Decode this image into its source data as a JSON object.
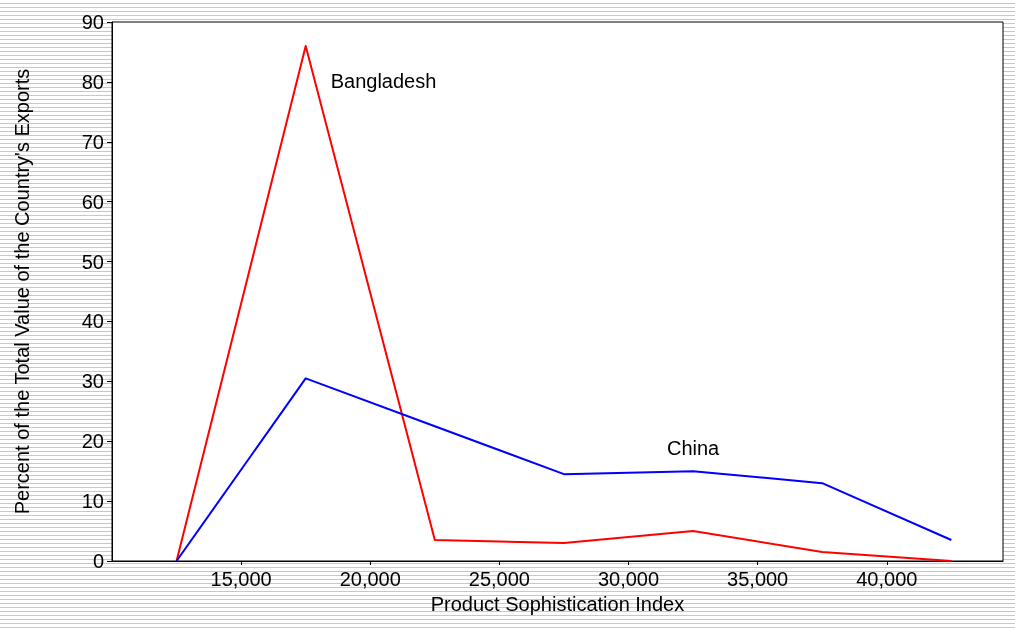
{
  "chart_data": {
    "type": "line",
    "xlabel": "Product Sophistication Index",
    "ylabel": "Percent of the Total Value of the Country's Exports",
    "x": [
      12500,
      17500,
      22500,
      27500,
      32500,
      37500,
      42500
    ],
    "series": [
      {
        "name": "Bangladesh",
        "color": "#ff0000",
        "values": [
          0,
          86,
          3.5,
          3,
          5,
          1.5,
          0
        ]
      },
      {
        "name": "China",
        "color": "#0000ff",
        "values": [
          0,
          30.5,
          22.5,
          14.5,
          15,
          13,
          3.5
        ]
      }
    ],
    "xlim": [
      10000,
      44500
    ],
    "xticks": [
      {
        "value": 15000,
        "label": "15,000"
      },
      {
        "value": 20000,
        "label": "20,000"
      },
      {
        "value": 25000,
        "label": "25,000"
      },
      {
        "value": 30000,
        "label": "30,000"
      },
      {
        "value": 35000,
        "label": "35,000"
      },
      {
        "value": 40000,
        "label": "40,000"
      }
    ],
    "ylim": [
      0,
      90
    ],
    "yticks": [
      0,
      10,
      20,
      30,
      40,
      50,
      60,
      70,
      80,
      90
    ],
    "grid": false,
    "marker": "none",
    "line_style": "solid"
  }
}
